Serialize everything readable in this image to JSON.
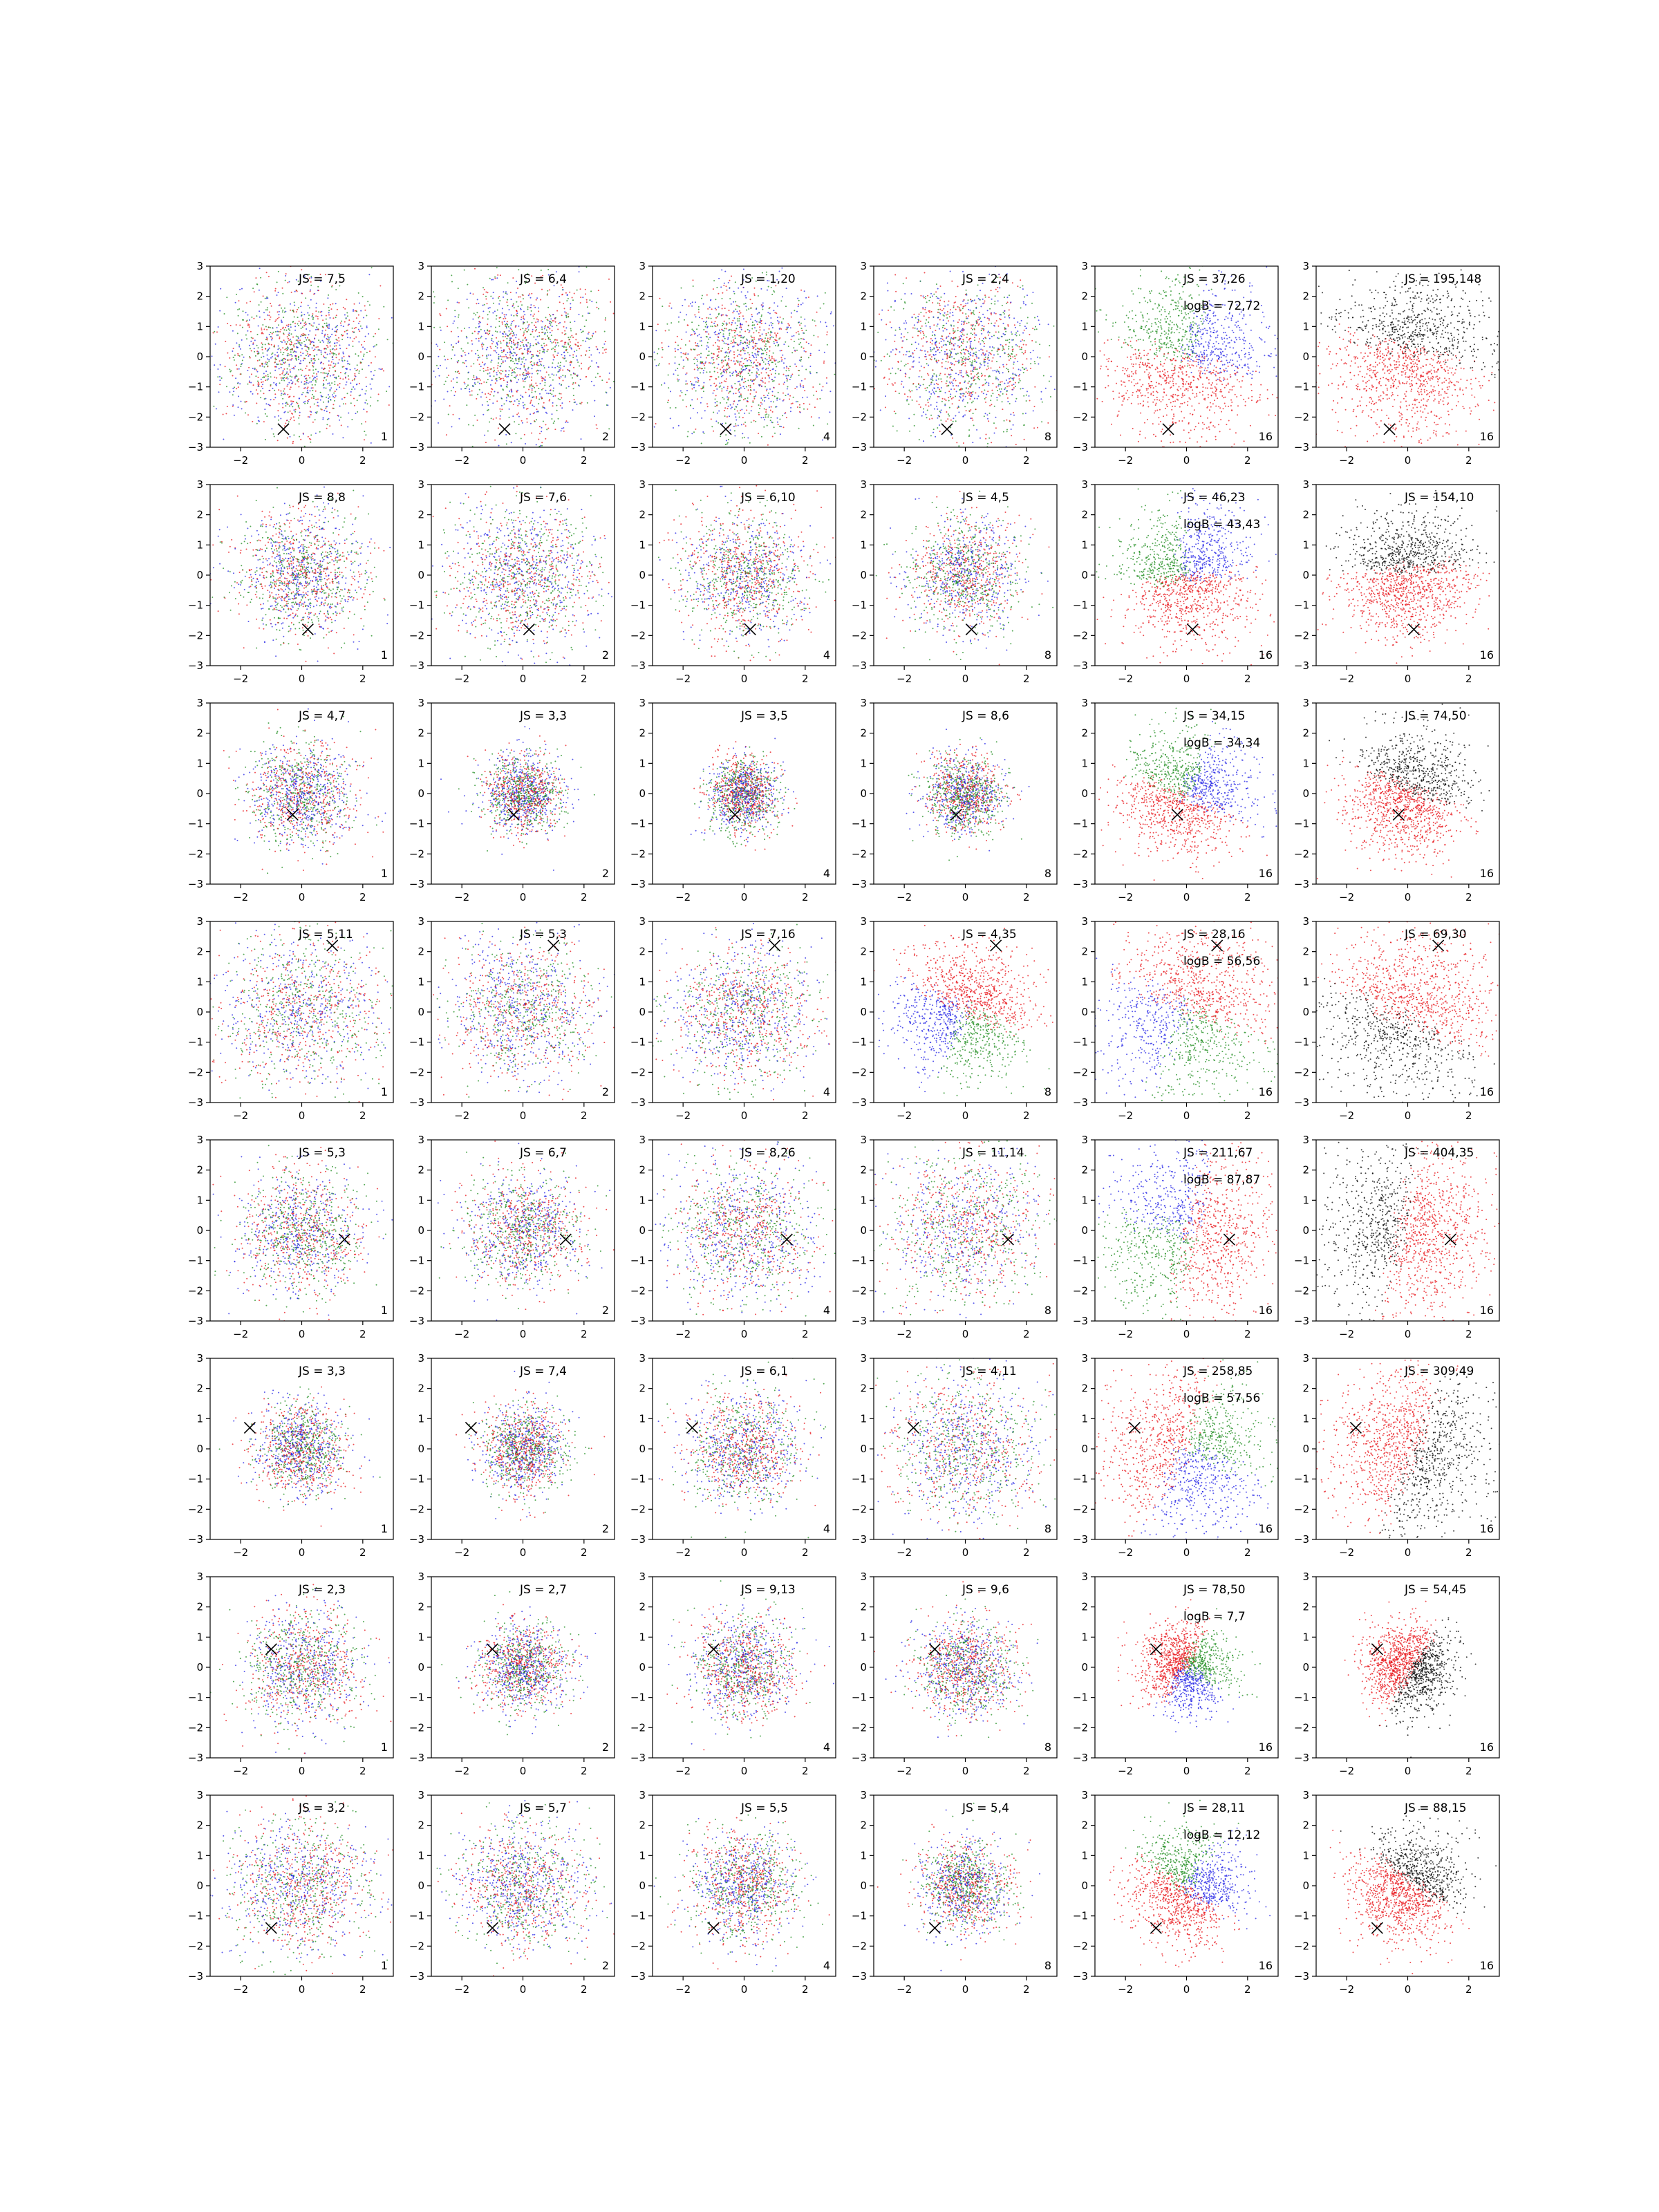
{
  "figure": {
    "rows": 8,
    "cols": 6,
    "colors": {
      "red": "#e8141a",
      "green": "#1e8c1e",
      "blue": "#2323e6",
      "black": "#000000",
      "marker": "#000000"
    },
    "tick_values": [
      -2,
      0,
      2
    ],
    "y_tick_values": [
      -3,
      -2,
      -1,
      0,
      1,
      2,
      3
    ],
    "xlim": [
      -3,
      3
    ],
    "ylim": [
      -3,
      3
    ],
    "tick_label_map": {
      "-3": "−3",
      "-2": "−2",
      "-1": "−1",
      "0": "0",
      "1": "1",
      "2": "2",
      "3": "3"
    }
  },
  "chart_data": {
    "type": "scatter",
    "panels": [
      [
        {
          "js": "JS = 7,5",
          "corner": "1",
          "marker": [
            -0.6,
            -2.4
          ],
          "spread": 1.3,
          "mode": "mix"
        },
        {
          "js": "JS = 6,4",
          "corner": "2",
          "marker": [
            -0.6,
            -2.4
          ],
          "spread": 1.35,
          "mode": "mix"
        },
        {
          "js": "JS = 1,20",
          "corner": "4",
          "marker": [
            -0.6,
            -2.4
          ],
          "spread": 1.3,
          "mode": "mix"
        },
        {
          "js": "JS = 2,4",
          "corner": "8",
          "marker": [
            -0.6,
            -2.4
          ],
          "spread": 1.3,
          "mode": "mix"
        },
        {
          "js": "JS = 37,26",
          "logb": "logB = 72,72",
          "corner": "16",
          "marker": [
            -0.6,
            -2.4
          ],
          "spread": 1.3,
          "mode": "rgb3"
        },
        {
          "js": "JS = 195,148",
          "corner": "16",
          "marker": [
            -0.6,
            -2.4
          ],
          "spread": 1.3,
          "mode": "rb"
        }
      ],
      [
        {
          "js": "JS = 8,8",
          "corner": "1",
          "marker": [
            0.2,
            -1.8
          ],
          "spread": 1.05,
          "mode": "mix"
        },
        {
          "js": "JS = 7,6",
          "corner": "2",
          "marker": [
            0.2,
            -1.8
          ],
          "spread": 1.2,
          "mode": "mix"
        },
        {
          "js": "JS = 6,10",
          "corner": "4",
          "marker": [
            0.2,
            -1.8
          ],
          "spread": 1.05,
          "mode": "mix"
        },
        {
          "js": "JS = 4,5",
          "corner": "8",
          "marker": [
            0.2,
            -1.8
          ],
          "spread": 0.95,
          "mode": "mix"
        },
        {
          "js": "JS = 46,23",
          "logb": "logB = 43,43",
          "corner": "16",
          "marker": [
            0.2,
            -1.8
          ],
          "spread": 1.05,
          "mode": "rgb3"
        },
        {
          "js": "JS = 154,10",
          "corner": "16",
          "marker": [
            0.2,
            -1.8
          ],
          "spread": 1.05,
          "mode": "rb"
        }
      ],
      [
        {
          "js": "JS = 4,7",
          "corner": "1",
          "marker": [
            -0.3,
            -0.7
          ],
          "spread": 0.85,
          "mode": "mix"
        },
        {
          "js": "JS = 3,3",
          "corner": "2",
          "marker": [
            -0.3,
            -0.7
          ],
          "spread": 0.65,
          "mode": "mix"
        },
        {
          "js": "JS = 3,5",
          "corner": "4",
          "marker": [
            -0.3,
            -0.7
          ],
          "spread": 0.6,
          "mode": "mix"
        },
        {
          "js": "JS = 8,6",
          "corner": "8",
          "marker": [
            -0.3,
            -0.7
          ],
          "spread": 0.65,
          "mode": "mix"
        },
        {
          "js": "JS = 34,15",
          "logb": "logB = 34,34",
          "corner": "16",
          "marker": [
            -0.3,
            -0.7
          ],
          "spread": 1.0,
          "mode": "rgb3"
        },
        {
          "js": "JS = 74,50",
          "corner": "16",
          "marker": [
            -0.3,
            -0.7
          ],
          "spread": 1.0,
          "mode": "rb"
        }
      ],
      [
        {
          "js": "JS = 5,11",
          "corner": "1",
          "marker": [
            1.0,
            2.2
          ],
          "spread": 1.3,
          "mode": "mix"
        },
        {
          "js": "JS = 5,3",
          "corner": "2",
          "marker": [
            1.0,
            2.2
          ],
          "spread": 1.2,
          "mode": "mix"
        },
        {
          "js": "JS = 7,16",
          "corner": "4",
          "marker": [
            1.0,
            2.2
          ],
          "spread": 1.15,
          "mode": "mix"
        },
        {
          "js": "JS = 4,35",
          "corner": "8",
          "marker": [
            1.0,
            2.2
          ],
          "spread": 1.1,
          "mode": "rgb3"
        },
        {
          "js": "JS = 28,16",
          "logb": "logB = 56,56",
          "corner": "16",
          "marker": [
            1.0,
            2.2
          ],
          "spread": 1.4,
          "mode": "rgb3"
        },
        {
          "js": "JS = 69,30",
          "corner": "16",
          "marker": [
            1.0,
            2.2
          ],
          "spread": 1.4,
          "mode": "rb"
        }
      ],
      [
        {
          "js": "JS = 5,3",
          "corner": "1",
          "marker": [
            1.4,
            -0.3
          ],
          "spread": 1.0,
          "mode": "mix"
        },
        {
          "js": "JS = 6,7",
          "corner": "2",
          "marker": [
            1.4,
            -0.3
          ],
          "spread": 0.95,
          "mode": "mix"
        },
        {
          "js": "JS = 8,26",
          "corner": "4",
          "marker": [
            1.4,
            -0.3
          ],
          "spread": 1.15,
          "mode": "mix"
        },
        {
          "js": "JS = 11,14",
          "corner": "8",
          "marker": [
            1.4,
            -0.3
          ],
          "spread": 1.3,
          "mode": "mix"
        },
        {
          "js": "JS = 211,67",
          "logb": "logB = 87,87",
          "corner": "16",
          "marker": [
            1.4,
            -0.3
          ],
          "spread": 1.4,
          "mode": "rgb3"
        },
        {
          "js": "JS = 404,35",
          "corner": "16",
          "marker": [
            1.4,
            -0.3
          ],
          "spread": 1.4,
          "mode": "rb"
        }
      ],
      [
        {
          "js": "JS = 3,3",
          "corner": "1",
          "marker": [
            -1.7,
            0.7
          ],
          "spread": 0.75,
          "mode": "mix"
        },
        {
          "js": "JS = 7,4",
          "corner": "2",
          "marker": [
            -1.7,
            0.7
          ],
          "spread": 0.7,
          "mode": "mix"
        },
        {
          "js": "JS = 6,1",
          "corner": "4",
          "marker": [
            -1.7,
            0.7
          ],
          "spread": 0.95,
          "mode": "mix"
        },
        {
          "js": "JS = 4,11",
          "corner": "8",
          "marker": [
            -1.7,
            0.7
          ],
          "spread": 1.2,
          "mode": "mix"
        },
        {
          "js": "JS = 258,85",
          "logb": "logB = 57,56",
          "corner": "16",
          "marker": [
            -1.7,
            0.7
          ],
          "spread": 1.3,
          "mode": "rgb3"
        },
        {
          "js": "JS = 309,49",
          "corner": "16",
          "marker": [
            -1.7,
            0.7
          ],
          "spread": 1.3,
          "mode": "rb"
        }
      ],
      [
        {
          "js": "JS = 2,3",
          "corner": "1",
          "marker": [
            -1.0,
            0.6
          ],
          "spread": 0.95,
          "mode": "mix"
        },
        {
          "js": "JS = 2,7",
          "corner": "2",
          "marker": [
            -1.0,
            0.6
          ],
          "spread": 0.7,
          "mode": "mix"
        },
        {
          "js": "JS = 9,13",
          "corner": "4",
          "marker": [
            -1.0,
            0.6
          ],
          "spread": 0.85,
          "mode": "mix"
        },
        {
          "js": "JS = 9,6",
          "corner": "8",
          "marker": [
            -1.0,
            0.6
          ],
          "spread": 0.8,
          "mode": "mix"
        },
        {
          "js": "JS = 78,50",
          "logb": "logB = 7,7",
          "corner": "16",
          "marker": [
            -1.0,
            0.6
          ],
          "spread": 0.7,
          "mode": "rgb3"
        },
        {
          "js": "JS = 54,45",
          "corner": "16",
          "marker": [
            -1.0,
            0.6
          ],
          "spread": 0.7,
          "mode": "rb"
        }
      ],
      [
        {
          "js": "JS = 3,2",
          "corner": "1",
          "marker": [
            -1.0,
            -1.4
          ],
          "spread": 1.15,
          "mode": "mix"
        },
        {
          "js": "JS = 5,7",
          "corner": "2",
          "marker": [
            -1.0,
            -1.4
          ],
          "spread": 1.05,
          "mode": "mix"
        },
        {
          "js": "JS = 5,5",
          "corner": "4",
          "marker": [
            -1.0,
            -1.4
          ],
          "spread": 0.9,
          "mode": "mix"
        },
        {
          "js": "JS = 5,4",
          "corner": "8",
          "marker": [
            -1.0,
            -1.4
          ],
          "spread": 0.75,
          "mode": "mix"
        },
        {
          "js": "JS = 28,11",
          "logb": "logB = 12,12",
          "corner": "16",
          "marker": [
            -1.0,
            -1.4
          ],
          "spread": 0.9,
          "mode": "rgb3"
        },
        {
          "js": "JS = 88,15",
          "corner": "16",
          "marker": [
            -1.0,
            -1.4
          ],
          "spread": 0.9,
          "mode": "rb"
        }
      ]
    ]
  }
}
